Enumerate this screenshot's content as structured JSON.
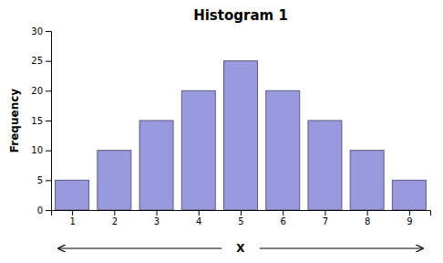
{
  "chart_data": {
    "type": "bar",
    "title": "Histogram 1",
    "x": [
      1,
      2,
      3,
      4,
      5,
      6,
      7,
      8,
      9
    ],
    "values": [
      5,
      10,
      15,
      20,
      25,
      20,
      15,
      10,
      5
    ],
    "color": "#9999dd",
    "xlabel": "X",
    "ylabel": "Frequency",
    "xlim": [
      0.5,
      9.5
    ],
    "xticks": [
      1,
      2,
      3,
      4,
      5,
      6,
      7,
      8,
      9
    ],
    "ylim": [
      0,
      30
    ],
    "yticks": [
      0,
      5,
      10,
      15,
      20,
      25,
      30
    ]
  }
}
